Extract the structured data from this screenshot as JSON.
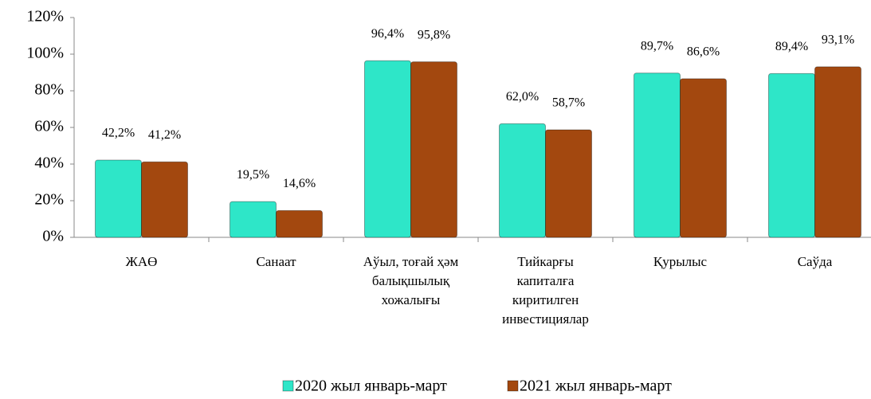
{
  "chart_data": {
    "type": "bar",
    "categories": [
      [
        "ЖАӨ"
      ],
      [
        "Санаат"
      ],
      [
        "Аўыл, тоғай ҳәм",
        "балықшылық",
        "хожалығы"
      ],
      [
        "Тийкарғы",
        "капиталға",
        "киритилген",
        "инвестициялар"
      ],
      [
        "Қурылыс"
      ],
      [
        "Саўда"
      ]
    ],
    "series": [
      {
        "name": "2020 жыл январь-март",
        "color": "#2ee6c8",
        "values": [
          42.2,
          19.5,
          96.4,
          62.0,
          89.7,
          89.4
        ],
        "value_labels": [
          "42,2%",
          "19,5%",
          "96,4%",
          "62,0%",
          "89,7%",
          "89,4%"
        ]
      },
      {
        "name": "2021 жыл январь-март",
        "color": "#a3480f",
        "values": [
          41.2,
          14.6,
          95.8,
          58.7,
          86.6,
          93.1
        ],
        "value_labels": [
          "41,2%",
          "14,6%",
          "95,8%",
          "58,7%",
          "86,6%",
          "93,1%"
        ]
      }
    ],
    "ylim": [
      0,
      120
    ],
    "yticks": [
      {
        "value": 0,
        "label": "0%"
      },
      {
        "value": 20,
        "label": "20%"
      },
      {
        "value": 40,
        "label": "40%"
      },
      {
        "value": 60,
        "label": "60%"
      },
      {
        "value": 80,
        "label": "80%"
      },
      {
        "value": 100,
        "label": "100%"
      },
      {
        "value": 120,
        "label": "120%"
      }
    ],
    "legend": "bottom"
  }
}
